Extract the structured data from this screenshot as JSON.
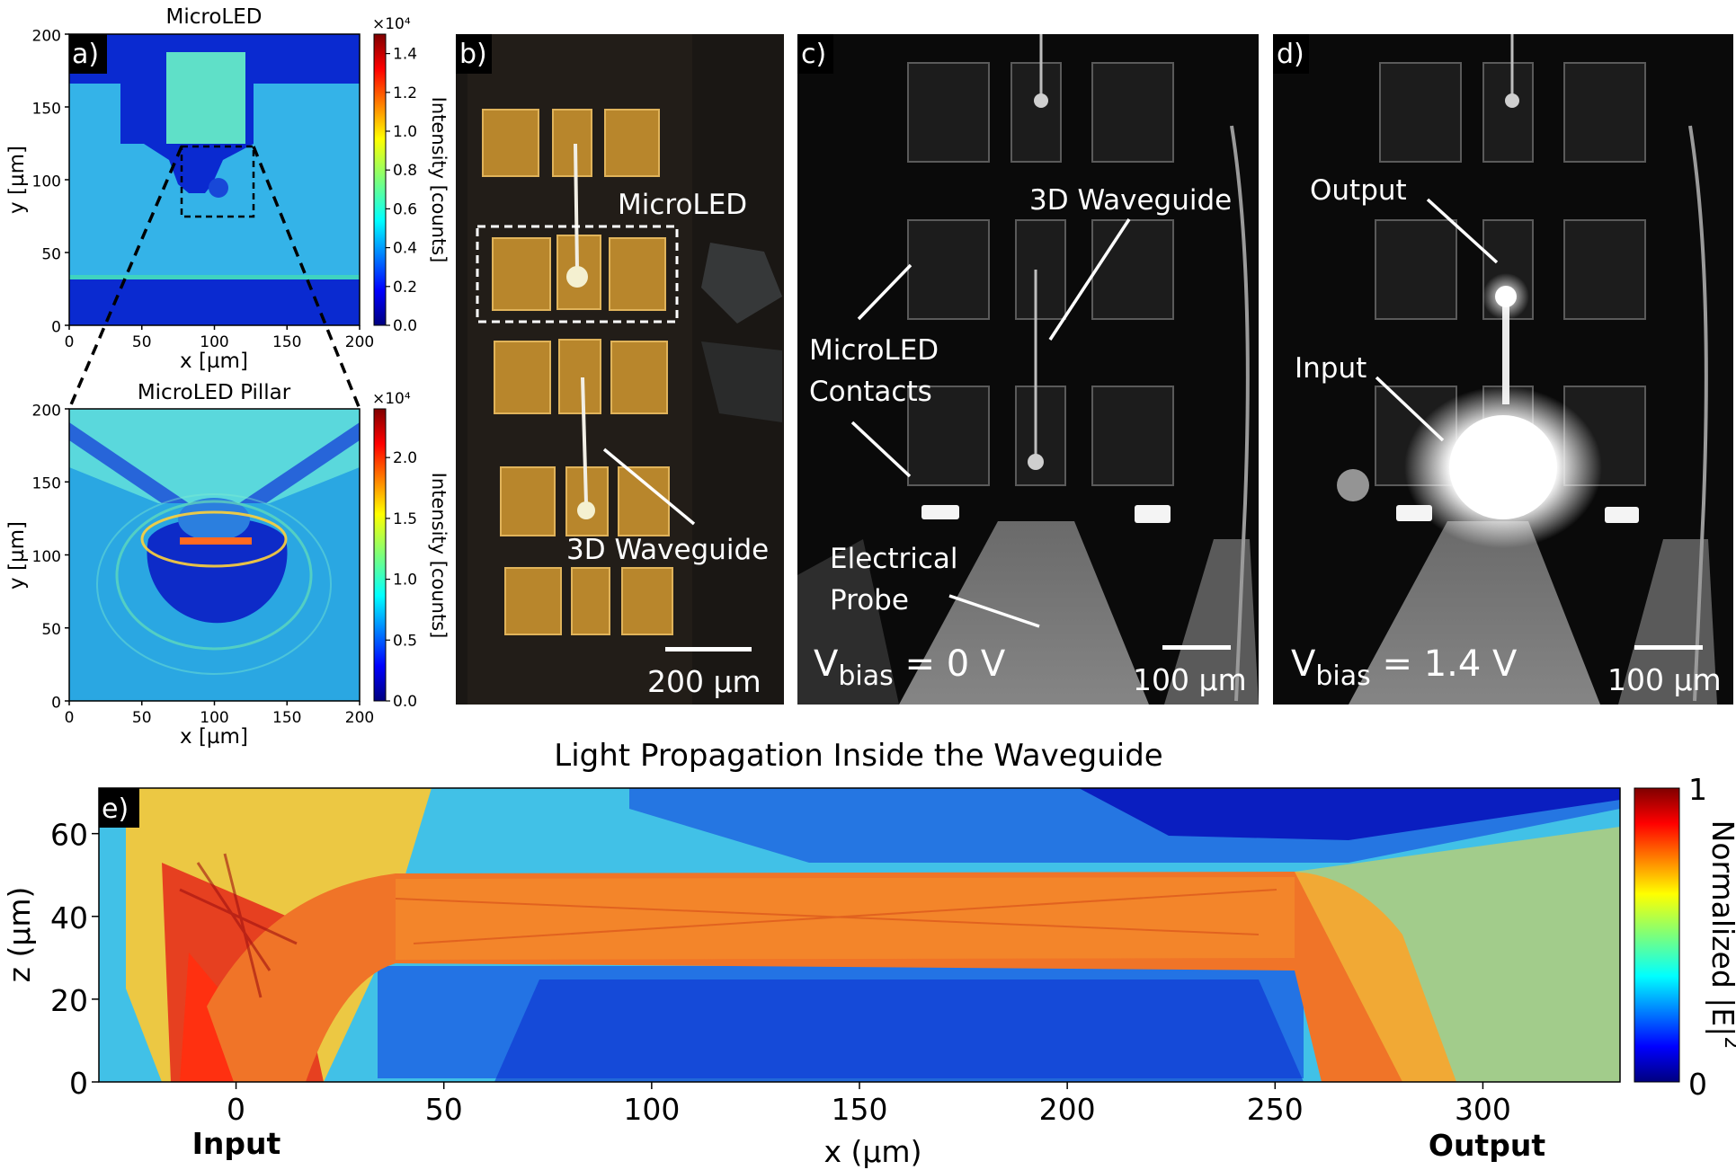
{
  "chart_data": [
    {
      "type": "heatmap",
      "panel": "a",
      "label": "a)",
      "title": "MicroLED",
      "xlabel": "x [µm]",
      "ylabel": "y [µm]",
      "xlim": [
        0,
        200
      ],
      "ylim": [
        0,
        200
      ],
      "xticks": [
        0,
        50,
        100,
        150,
        200
      ],
      "yticks": [
        0,
        50,
        100,
        150,
        200
      ],
      "colorbar": {
        "label": "Intensity [counts]",
        "multiplier": "×10⁴",
        "ticks": [
          "0.0",
          "0.2",
          "0.4",
          "0.6",
          "0.8",
          "1.0",
          "1.2",
          "1.4"
        ],
        "range": [
          0,
          1.5
        ]
      }
    },
    {
      "type": "heatmap",
      "panel": "a-zoom",
      "title": "MicroLED Pillar",
      "xlabel": "x [µm]",
      "ylabel": "y [µm]",
      "xlim": [
        0,
        200
      ],
      "ylim": [
        0,
        200
      ],
      "xticks": [
        0,
        50,
        100,
        150,
        200
      ],
      "yticks": [
        0,
        50,
        100,
        150,
        200
      ],
      "colorbar": {
        "label": "Intensity [counts]",
        "multiplier": "×10⁴",
        "ticks": [
          "0.0",
          "0.5",
          "1.0",
          "1.5",
          "2.0"
        ],
        "range": [
          0,
          2.4
        ]
      }
    },
    {
      "type": "heatmap",
      "panel": "e",
      "label": "e)",
      "title": "Light Propagation Inside the Waveguide",
      "xlabel": "x (µm)",
      "ylabel": "z (µm)",
      "xlim": [
        -33,
        333
      ],
      "ylim": [
        0,
        71
      ],
      "xticks": [
        0,
        50,
        100,
        150,
        200,
        250,
        300
      ],
      "yticks": [
        0,
        20,
        40,
        60
      ],
      "annotations": [
        {
          "text": "Input",
          "x": 0
        },
        {
          "text": "Output",
          "x": 300
        }
      ],
      "colorbar": {
        "label": "Normalized |E|",
        "superscript": "2",
        "min_label": "0",
        "max_label": "1"
      }
    }
  ],
  "photos": {
    "b": {
      "label": "b)",
      "microled": "MicroLED",
      "waveguide": "3D Waveguide",
      "scalebar": "200 µm"
    },
    "c": {
      "label": "c)",
      "waveguide": "3D Waveguide",
      "contacts_1": "MicroLED",
      "contacts_2": "Contacts",
      "probe_1": "Electrical",
      "probe_2": "Probe",
      "vbias_v": "V",
      "vbias_sub": "bias",
      "vbias_val": " = 0 V",
      "scalebar": "100 µm"
    },
    "d": {
      "label": "d)",
      "output": "Output",
      "input": "Input",
      "vbias_v": "V",
      "vbias_sub": "bias",
      "vbias_val": " = 1.4 V",
      "scalebar": "100 µm"
    }
  },
  "colors": {
    "jet_low": "#00007f",
    "jet_high": "#7f0000",
    "gold": "#c8902a"
  }
}
